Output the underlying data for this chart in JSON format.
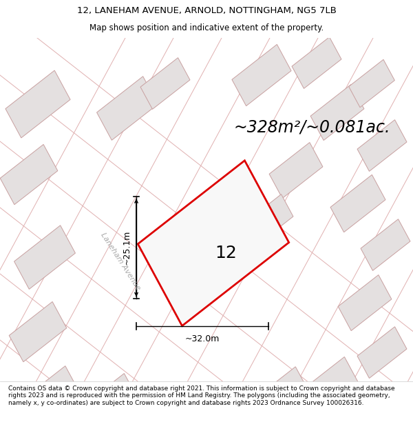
{
  "title_line1": "12, LANEHAM AVENUE, ARNOLD, NOTTINGHAM, NG5 7LB",
  "title_line2": "Map shows position and indicative extent of the property.",
  "footer_text": "Contains OS data © Crown copyright and database right 2021. This information is subject to Crown copyright and database rights 2023 and is reproduced with the permission of HM Land Registry. The polygons (including the associated geometry, namely x, y co-ordinates) are subject to Crown copyright and database rights 2023 Ordnance Survey 100026316.",
  "area_text": "~328m²/~0.081ac.",
  "label_number": "12",
  "dim_width": "~32.0m",
  "dim_height": "~25.1m",
  "street_label": "Laneham Avenue",
  "map_bg": "#f2f0f0",
  "plot_fill": "#f0eeee",
  "plot_edge_color": "#dd0000",
  "building_fill": "#e0dcdc",
  "building_edge": "#c8a0a0",
  "road_line_color": "#c8b8b8",
  "lot_line_color": "#e0b0b0",
  "title_fontsize": 9.5,
  "subtitle_fontsize": 8.5,
  "footer_fontsize": 6.5,
  "area_fontsize": 17,
  "label_fontsize": 18,
  "dim_fontsize": 9
}
